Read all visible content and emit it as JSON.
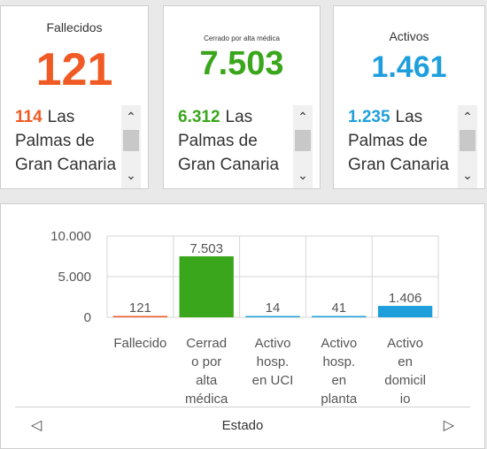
{
  "cards": [
    {
      "title": "Fallecidos",
      "value": "121",
      "color": "#f05a24",
      "item_number": "114",
      "item_label": "Las Palmas de Gran Canaria"
    },
    {
      "title": "Cerrado por alta médica",
      "value": "7.503",
      "color": "#3aa61c",
      "item_number": "6.312",
      "item_label": "Las Palmas de Gran Canaria"
    },
    {
      "title": "Activos",
      "value": "1.461",
      "color": "#1e9fdc",
      "item_number": "1.235",
      "item_label": "Las Palmas de Gran Canaria"
    }
  ],
  "scroll_icons": {
    "up": "chevron-up-icon",
    "down": "chevron-down-icon"
  },
  "chart_data": {
    "type": "bar",
    "categories": [
      "Fallecido",
      "Cerrado por alta médica",
      "Activo hosp. en UCI",
      "Activo hosp. en planta",
      "Activo en domicilio"
    ],
    "category_lines": [
      [
        "Fallecido"
      ],
      [
        "Cerrad",
        "o por",
        "alta",
        "médica"
      ],
      [
        "Activo",
        "hosp.",
        "en UCI"
      ],
      [
        "Activo",
        "hosp.",
        "en",
        "planta"
      ],
      [
        "Activo",
        "en",
        "domicil",
        "io"
      ]
    ],
    "values": [
      121,
      7503,
      14,
      41,
      1406
    ],
    "value_labels": [
      "121",
      "7.503",
      "14",
      "41",
      "1.406"
    ],
    "colors": [
      "#f05a24",
      "#3aa61c",
      "#1e9fdc",
      "#1e9fdc",
      "#1e9fdc"
    ],
    "yticks": [
      0,
      5000,
      10000
    ],
    "ytick_labels": [
      "0",
      "5.000",
      "10.000"
    ],
    "ylim": [
      0,
      10000
    ],
    "xlabel": "Estado",
    "grid": true
  },
  "footer": {
    "label": "Estado",
    "prev_icon": "triangle-left-icon",
    "next_icon": "triangle-right-icon"
  }
}
